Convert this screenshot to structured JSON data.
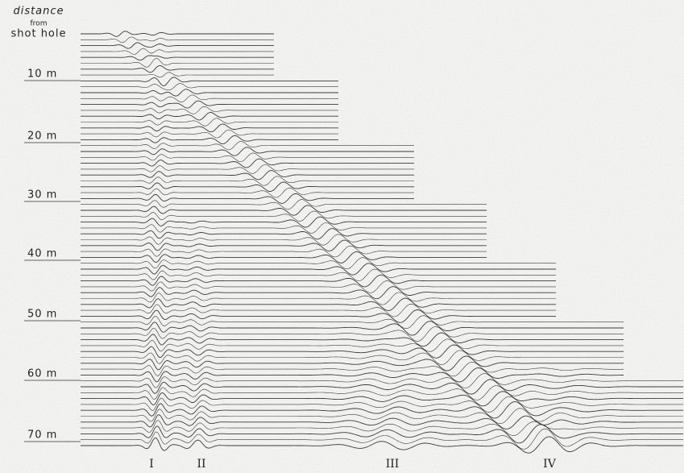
{
  "header": {
    "lines": [
      "distance",
      "from",
      "shot hole"
    ]
  },
  "distances": [
    "10 m",
    "20 m",
    "30 m",
    "40 m",
    "50 m",
    "60 m",
    "70 m"
  ],
  "phases": [
    "I",
    "II",
    "III",
    "IV"
  ]
}
